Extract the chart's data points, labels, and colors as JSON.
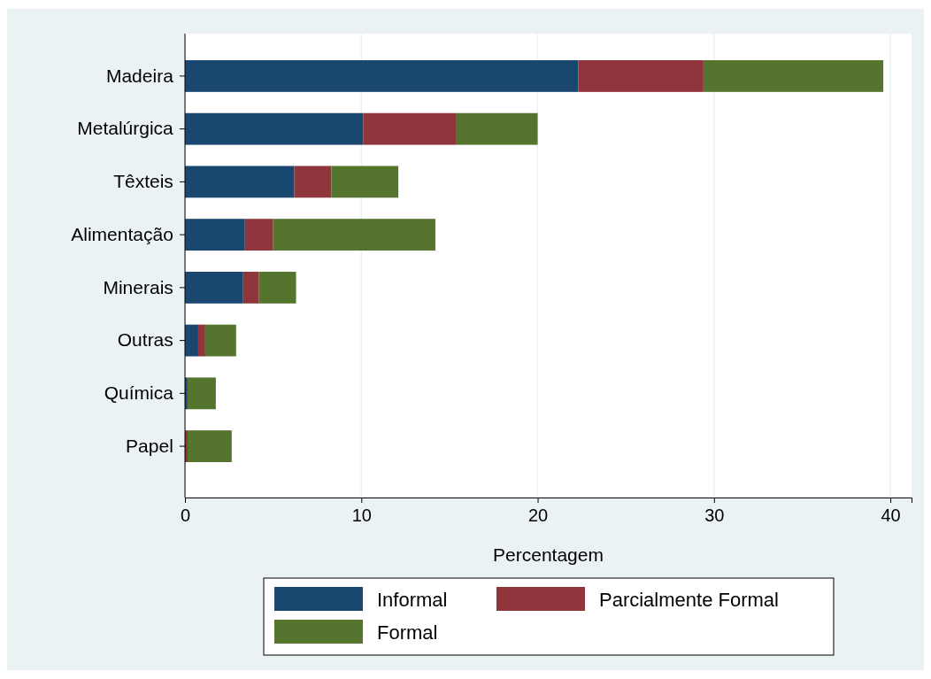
{
  "chart_data": {
    "type": "bar",
    "orientation": "horizontal",
    "stacked": true,
    "xlabel": "Percentagem",
    "categories": [
      "Madeira",
      "Metalúrgica",
      "Têxteis",
      "Alimentação",
      "Minerais",
      "Outras",
      "Química",
      "Papel"
    ],
    "series": [
      {
        "name": "Informal",
        "color": "#1a476f",
        "values": [
          22.3,
          10.1,
          6.2,
          3.4,
          3.3,
          0.75,
          0.1,
          null
        ]
      },
      {
        "name": "Parcialmente Formal",
        "color": "#90353b",
        "values": [
          7.1,
          5.3,
          2.1,
          1.6,
          0.9,
          0.4,
          0.05,
          0.15
        ]
      },
      {
        "name": "Formal",
        "color": "#55752f",
        "values": [
          10.2,
          4.6,
          3.8,
          9.2,
          2.1,
          1.75,
          1.6,
          2.5
        ]
      }
    ],
    "xlim": [
      0,
      41.2
    ],
    "xticks": [
      0,
      10,
      20,
      30,
      40
    ],
    "grid": "x",
    "legend": "bottom"
  }
}
